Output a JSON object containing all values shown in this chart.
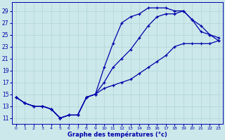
{
  "background_color": "#cce8ea",
  "grid_color": "#b0d4d4",
  "line_color": "#0000aa",
  "xlabel": "Graphe des températures (°c)",
  "hours": [
    0,
    1,
    2,
    3,
    4,
    5,
    6,
    7,
    8,
    9,
    10,
    11,
    12,
    13,
    14,
    15,
    16,
    17,
    18,
    19,
    20,
    21,
    22,
    23
  ],
  "y_line1": [
    14.5,
    13.5,
    13.0,
    13.0,
    12.5,
    11.0,
    11.5,
    11.5,
    14.5,
    15.0,
    19.5,
    23.5,
    27.0,
    28.0,
    28.5,
    29.5,
    29.5,
    29.5,
    29.0,
    29.0,
    27.5,
    26.5,
    25.0,
    24.5
  ],
  "y_line2": [
    14.5,
    13.5,
    13.0,
    13.0,
    12.5,
    11.0,
    11.5,
    11.5,
    14.5,
    15.0,
    17.0,
    19.5,
    21.0,
    22.5,
    24.5,
    26.5,
    28.0,
    28.5,
    28.5,
    29.0,
    27.5,
    25.5,
    25.0,
    24.0
  ],
  "y_line3": [
    14.5,
    13.5,
    13.0,
    13.0,
    12.5,
    11.0,
    11.5,
    11.5,
    14.5,
    15.0,
    16.0,
    16.5,
    17.0,
    17.5,
    18.5,
    19.5,
    20.5,
    21.5,
    23.0,
    23.5,
    23.5,
    23.5,
    23.5,
    24.0
  ],
  "yticks": [
    11,
    13,
    15,
    17,
    19,
    21,
    23,
    25,
    27,
    29
  ],
  "xticks": [
    0,
    1,
    2,
    3,
    4,
    5,
    6,
    7,
    8,
    9,
    10,
    11,
    12,
    13,
    14,
    15,
    16,
    17,
    18,
    19,
    20,
    21,
    22,
    23
  ],
  "ylim": [
    10.0,
    30.5
  ],
  "xlim": [
    -0.5,
    23.5
  ]
}
